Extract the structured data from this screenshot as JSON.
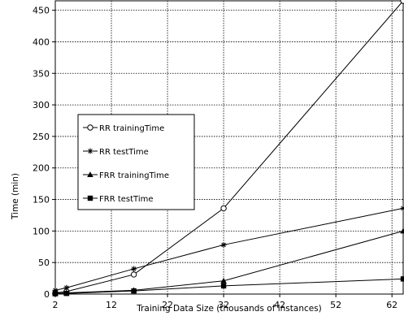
{
  "chart_data": {
    "type": "line",
    "title": "",
    "xlabel": "Training Data Size (thousands of instances)",
    "ylabel": "Time (min)",
    "xlim": [
      2,
      64
    ],
    "ylim": [
      0,
      465
    ],
    "xticks": [
      2,
      12,
      22,
      32,
      42,
      52,
      62
    ],
    "yticks": [
      0,
      50,
      100,
      150,
      200,
      250,
      300,
      350,
      400,
      450
    ],
    "grid": true,
    "legend_position": "center-left",
    "series": [
      {
        "name": "RR trainingTime",
        "marker": "circle",
        "x": [
          2,
          4,
          16,
          32,
          64
        ],
        "y": [
          2,
          4,
          31,
          136,
          465
        ]
      },
      {
        "name": "RR testTime",
        "marker": "star",
        "x": [
          2,
          4,
          16,
          32,
          64
        ],
        "y": [
          6,
          10,
          40,
          78,
          136
        ]
      },
      {
        "name": "FRR trainingTime",
        "marker": "triangle",
        "x": [
          2,
          4,
          16,
          32,
          64
        ],
        "y": [
          1,
          2,
          6,
          21,
          100
        ]
      },
      {
        "name": "FRR testTime",
        "marker": "square",
        "x": [
          2,
          4,
          16,
          32,
          64
        ],
        "y": [
          0.5,
          1,
          5,
          13,
          24
        ]
      }
    ]
  }
}
